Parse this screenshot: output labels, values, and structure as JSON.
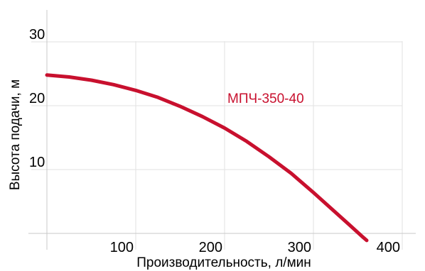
{
  "chart_data": {
    "type": "line",
    "title": "",
    "xlabel": "Производительность, л/мин",
    "ylabel": "Высота подачи, м",
    "xlim": [
      0,
      400
    ],
    "ylim": [
      0,
      35
    ],
    "x_ticks": [
      100,
      200,
      300,
      400
    ],
    "y_ticks": [
      10,
      20,
      30
    ],
    "grid": true,
    "legend": "none",
    "series": [
      {
        "name": "МПЧ-350-40",
        "color": "#c8102e",
        "x": [
          0,
          25,
          50,
          75,
          100,
          125,
          150,
          175,
          200,
          225,
          250,
          275,
          300,
          320,
          340,
          355,
          360
        ],
        "y": [
          24.8,
          24.5,
          24.0,
          23.3,
          22.4,
          21.3,
          19.9,
          18.3,
          16.5,
          14.4,
          12.0,
          9.4,
          6.4,
          3.9,
          1.4,
          -0.5,
          -1.1
        ]
      }
    ]
  }
}
